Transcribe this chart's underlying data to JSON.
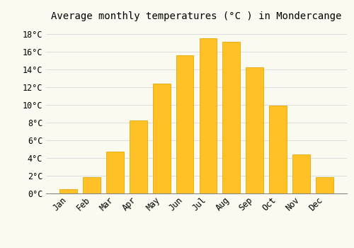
{
  "months": [
    "Jan",
    "Feb",
    "Mar",
    "Apr",
    "May",
    "Jun",
    "Jul",
    "Aug",
    "Sep",
    "Oct",
    "Nov",
    "Dec"
  ],
  "values": [
    0.5,
    1.8,
    4.7,
    8.2,
    12.4,
    15.6,
    17.5,
    17.1,
    14.2,
    9.9,
    4.4,
    1.8
  ],
  "bar_color": "#FFC125",
  "bar_edge_color": "#E8A800",
  "title": "Average monthly temperatures (°C ) in Mondercange",
  "ylim": [
    0,
    19
  ],
  "yticks": [
    0,
    2,
    4,
    6,
    8,
    10,
    12,
    14,
    16,
    18
  ],
  "ytick_labels": [
    "0°C",
    "2°C",
    "4°C",
    "6°C",
    "8°C",
    "10°C",
    "12°C",
    "14°C",
    "16°C",
    "18°C"
  ],
  "background_color": "#FAFAF0",
  "grid_color": "#DDDDDD",
  "title_fontsize": 10,
  "tick_fontsize": 8.5,
  "font_family": "monospace",
  "bar_width": 0.75
}
